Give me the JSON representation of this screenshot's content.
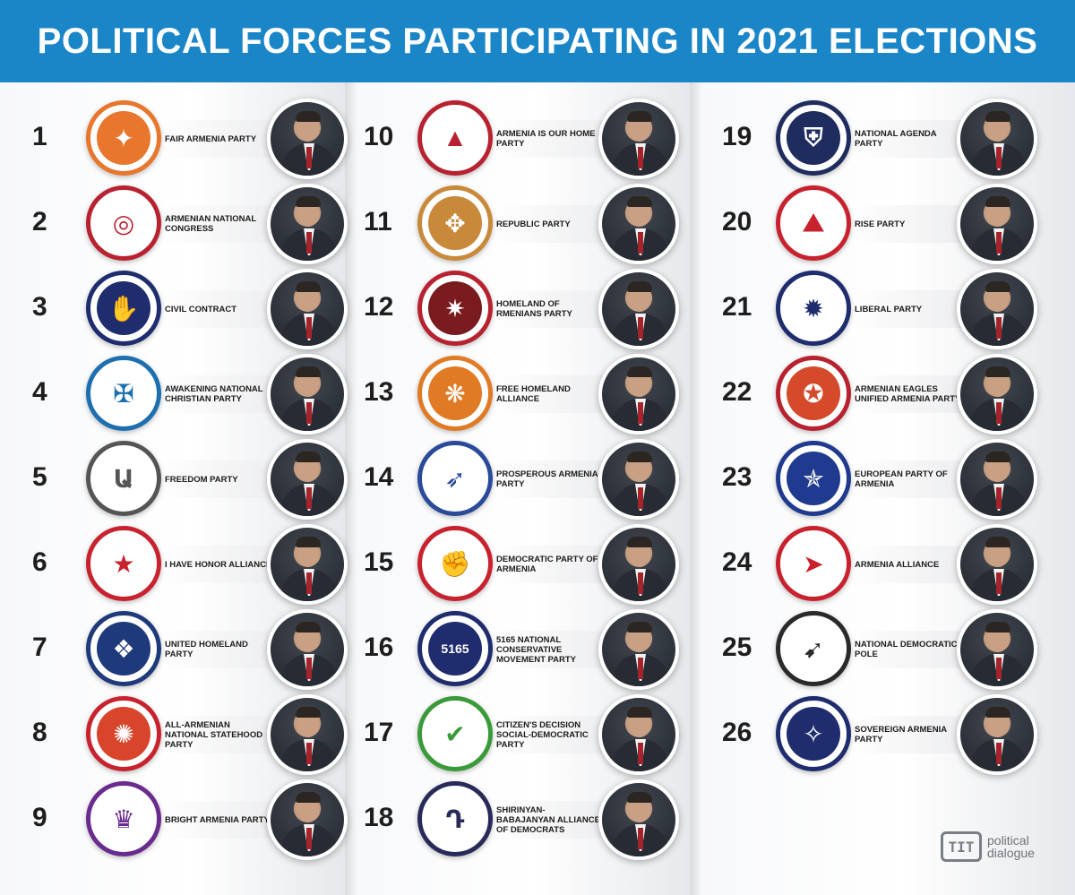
{
  "title": "POLITICAL FORCES PARTICIPATING IN 2021 ELECTIONS",
  "columns": [
    [
      {
        "num": "1",
        "name": "FAIR ARMENIA PARTY",
        "ring": "#e8762c",
        "fill": "#e8762c",
        "glyph": "✦"
      },
      {
        "num": "2",
        "name": "ARMENIAN NATIONAL CONGRESS",
        "ring": "#b82230",
        "fill": "#ffffff",
        "glyph": "◎"
      },
      {
        "num": "3",
        "name": "CIVIL CONTRACT",
        "ring": "#1f2c6e",
        "fill": "#1f2c6e",
        "glyph": "✋"
      },
      {
        "num": "4",
        "name": "AWAKENING NATIONAL CHRISTIAN PARTY",
        "ring": "#1d6fb0",
        "fill": "#ffffff",
        "glyph": "✠"
      },
      {
        "num": "5",
        "name": "FREEDOM PARTY",
        "ring": "#555555",
        "fill": "#ffffff",
        "glyph": "Ա"
      },
      {
        "num": "6",
        "name": "I HAVE HONOR ALLIANCE",
        "ring": "#c8222e",
        "fill": "#ffffff",
        "glyph": "★"
      },
      {
        "num": "7",
        "name": "UNITED HOMELAND PARTY",
        "ring": "#1f3a7a",
        "fill": "#1f3a7a",
        "glyph": "❖"
      },
      {
        "num": "8",
        "name": "ALL-ARMENIAN NATIONAL STATEHOOD PARTY",
        "ring": "#c8222e",
        "fill": "#d8452b",
        "glyph": "✺"
      },
      {
        "num": "9",
        "name": "BRIGHT ARMENIA PARTY",
        "ring": "#6a2b8e",
        "fill": "#ffffff",
        "glyph": "♛"
      }
    ],
    [
      {
        "num": "10",
        "name": "ARMENIA IS OUR HOME PARTY",
        "ring": "#b82230",
        "fill": "#ffffff",
        "glyph": "▲"
      },
      {
        "num": "11",
        "name": "REPUBLIC PARTY",
        "ring": "#c9893a",
        "fill": "#c9893a",
        "glyph": "✥"
      },
      {
        "num": "12",
        "name": "HOMELAND OF RMENIANS PARTY",
        "ring": "#b82230",
        "fill": "#7a1b1f",
        "glyph": "✷"
      },
      {
        "num": "13",
        "name": "FREE HOMELAND ALLIANCE",
        "ring": "#e07a24",
        "fill": "#e07a24",
        "glyph": "❋"
      },
      {
        "num": "14",
        "name": "PROSPEROUS ARMENIA PARTY",
        "ring": "#2a4a9a",
        "fill": "#ffffff",
        "glyph": "➶"
      },
      {
        "num": "15",
        "name": "DEMOCRATIC PARTY OF ARMENIA",
        "ring": "#c8222e",
        "fill": "#ffffff",
        "glyph": "✊"
      },
      {
        "num": "16",
        "name": "5165 NATIONAL CONSERVATIVE MOVEMENT PARTY",
        "ring": "#1f2c6e",
        "fill": "#1f2c6e",
        "glyph": "5165"
      },
      {
        "num": "17",
        "name": "CITIZEN'S DECISION SOCIAL-DEMOCRATIC PARTY",
        "ring": "#3a9a3a",
        "fill": "#ffffff",
        "glyph": "✔"
      },
      {
        "num": "18",
        "name": "SHIRINYAN-BABAJANYAN ALLIANCE OF DEMOCRATS",
        "ring": "#2a2a5a",
        "fill": "#ffffff",
        "glyph": "Դ"
      }
    ],
    [
      {
        "num": "19",
        "name": "NATIONAL AGENDA PARTY",
        "ring": "#1f2c5e",
        "fill": "#1f2c5e",
        "glyph": "⛨"
      },
      {
        "num": "20",
        "name": "RISE PARTY",
        "ring": "#c8222e",
        "fill": "#ffffff",
        "glyph": "⛰"
      },
      {
        "num": "21",
        "name": "LIBERAL PARTY",
        "ring": "#1f2c6e",
        "fill": "#ffffff",
        "glyph": "✹"
      },
      {
        "num": "22",
        "name": "ARMENIAN EAGLES UNIFIED ARMENIA PARTY",
        "ring": "#b82230",
        "fill": "#d44a2a",
        "glyph": "✪"
      },
      {
        "num": "23",
        "name": "EUROPEAN PARTY OF ARMENIA",
        "ring": "#1f3a8e",
        "fill": "#1f3a8e",
        "glyph": "✯"
      },
      {
        "num": "24",
        "name": "ARMENIA ALLIANCE",
        "ring": "#c8222e",
        "fill": "#ffffff",
        "glyph": "➤"
      },
      {
        "num": "25",
        "name": "NATIONAL DEMOCRATIC POLE",
        "ring": "#2a2a2a",
        "fill": "#ffffff",
        "glyph": "➹"
      },
      {
        "num": "26",
        "name": "SOVEREIGN ARMENIA PARTY",
        "ring": "#1f2c6e",
        "fill": "#1f2c6e",
        "glyph": "✧"
      }
    ]
  ],
  "watermark": {
    "icon_text": "TIT",
    "line1": "political",
    "line2": "dialogue"
  }
}
